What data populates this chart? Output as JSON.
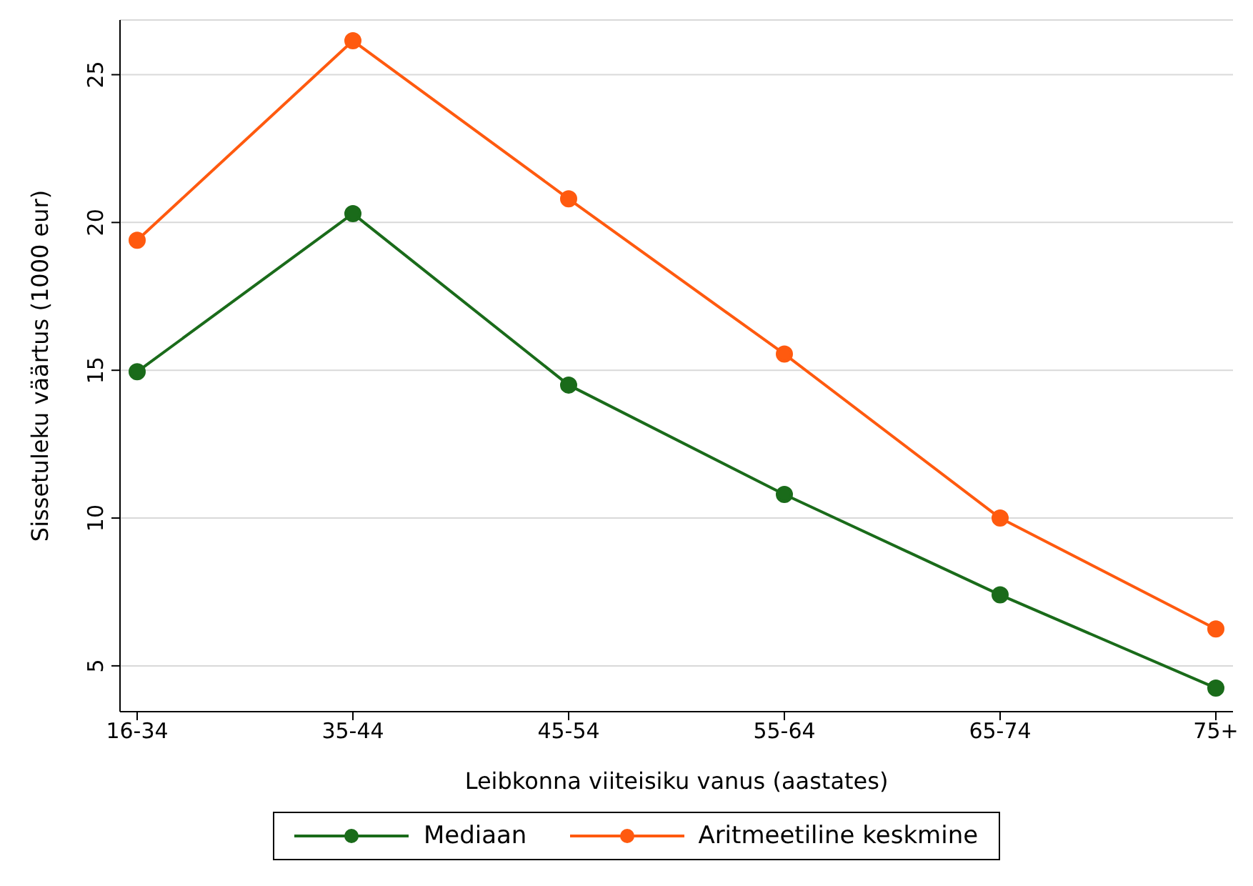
{
  "chart_data": {
    "type": "line",
    "xlabel": "Leibkonna viiteisiku vanus (aastates)",
    "ylabel": "Sissetuleku väärtus (1000 eur)",
    "categories": [
      "16-34",
      "35-44",
      "45-54",
      "55-64",
      "65-74",
      "75+"
    ],
    "series": [
      {
        "name": "Mediaan",
        "color": "#1a6b1a",
        "values": [
          14.95,
          20.3,
          14.5,
          10.8,
          7.4,
          4.25
        ]
      },
      {
        "name": "Aritmeetiline keskmine",
        "color": "#ff5a0f",
        "values": [
          19.4,
          26.15,
          20.8,
          15.55,
          10.0,
          6.25
        ]
      }
    ],
    "ylim": [
      3.45,
      26.85
    ],
    "yticks": [
      5,
      10,
      15,
      20,
      25
    ],
    "grid": "y",
    "legend": "bottom",
    "marker": "circle",
    "line_style": "solid"
  }
}
